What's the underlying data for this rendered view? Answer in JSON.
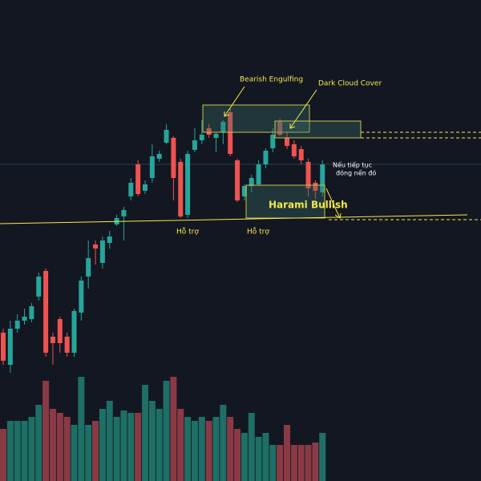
{
  "chart_data": {
    "type": "candlestick",
    "ylim": [
      0,
      600
    ],
    "up_color": "#26a69a",
    "down_color": "#ef5350",
    "volume_up_color": "#1e6f66",
    "volume_down_color": "#8a3a45",
    "open": [
      185,
      145,
      190,
      200,
      202,
      230,
      262,
      180,
      202,
      180,
      160,
      210,
      255,
      295,
      272,
      297,
      320,
      330,
      355,
      395,
      362,
      378,
      402,
      422,
      428,
      398,
      332,
      413,
      425,
      440,
      428,
      435,
      460,
      400,
      355,
      368,
      370,
      395,
      415,
      448,
      428,
      420,
      414,
      398,
      372,
      360
    ],
    "high": [
      190,
      200,
      208,
      215,
      222,
      260,
      265,
      185,
      205,
      185,
      215,
      255,
      300,
      300,
      305,
      312,
      332,
      342,
      378,
      400,
      375,
      420,
      412,
      445,
      430,
      402,
      412,
      440,
      450,
      445,
      435,
      450,
      465,
      402,
      370,
      382,
      400,
      415,
      440,
      452,
      435,
      425,
      418,
      402,
      375,
      400
    ],
    "low": [
      145,
      135,
      185,
      195,
      198,
      225,
      155,
      145,
      160,
      155,
      155,
      200,
      240,
      270,
      265,
      290,
      318,
      300,
      350,
      355,
      358,
      372,
      398,
      420,
      350,
      328,
      328,
      410,
      420,
      428,
      410,
      420,
      405,
      348,
      350,
      360,
      368,
      390,
      410,
      430,
      414,
      402,
      395,
      355,
      352,
      355
    ],
    "close": [
      150,
      190,
      200,
      205,
      218,
      255,
      160,
      172,
      172,
      160,
      212,
      250,
      278,
      290,
      300,
      305,
      328,
      338,
      372,
      358,
      370,
      405,
      408,
      438,
      378,
      330,
      408,
      425,
      432,
      432,
      433,
      448,
      408,
      350,
      368,
      378,
      395,
      412,
      432,
      432,
      418,
      405,
      400,
      365,
      362,
      395
    ],
    "volume": [
      65,
      75,
      75,
      75,
      80,
      95,
      125,
      90,
      85,
      80,
      70,
      130,
      70,
      75,
      90,
      100,
      80,
      88,
      85,
      85,
      120,
      100,
      90,
      125,
      130,
      90,
      80,
      75,
      80,
      75,
      80,
      95,
      80,
      65,
      60,
      85,
      55,
      60,
      45,
      45,
      70,
      45,
      45,
      45,
      48,
      60
    ],
    "annotations": [
      "Bearish Engulfing",
      "Dark Cloud Cover",
      "Nếu tiếp tục",
      "đóng nến đỏ",
      "Harami Bullish",
      "Hỗ trợ",
      "Hỗ trợ"
    ]
  }
}
